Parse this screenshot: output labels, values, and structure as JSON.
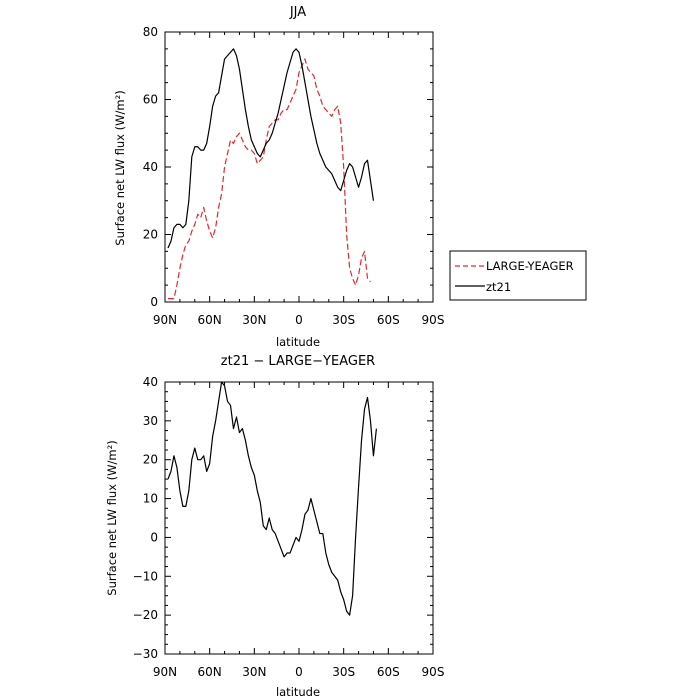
{
  "chart_data": [
    {
      "type": "line",
      "title": "JJA",
      "xlabel": "latitude",
      "ylabel": "Surface net LW flux (W/m²)",
      "xlim": [
        90,
        -90
      ],
      "ylim": [
        0,
        80
      ],
      "yticks": [
        0,
        20,
        40,
        60,
        80
      ],
      "xticks": [
        90,
        60,
        30,
        0,
        -30,
        -60,
        -90
      ],
      "xtick_labels": [
        "90N",
        "60N",
        "30N",
        "0",
        "30S",
        "60S",
        "90S"
      ],
      "grid": false,
      "legend": "outside-right",
      "series": [
        {
          "name": "LARGE-YEAGER",
          "color": "#e8262b",
          "dash": "dashed",
          "points": [
            [
              88,
              1
            ],
            [
              86,
              1
            ],
            [
              84,
              1
            ],
            [
              82,
              5
            ],
            [
              80,
              10
            ],
            [
              78,
              14
            ],
            [
              76,
              17
            ],
            [
              74,
              18
            ],
            [
              72,
              21
            ],
            [
              70,
              23
            ],
            [
              68,
              26
            ],
            [
              66,
              25
            ],
            [
              64,
              28
            ],
            [
              62,
              24
            ],
            [
              60,
              21
            ],
            [
              58,
              19
            ],
            [
              56,
              22
            ],
            [
              54,
              28
            ],
            [
              52,
              32
            ],
            [
              50,
              40
            ],
            [
              48,
              44
            ],
            [
              46,
              48
            ],
            [
              44,
              47
            ],
            [
              42,
              49
            ],
            [
              40,
              50
            ],
            [
              38,
              48
            ],
            [
              36,
              46
            ],
            [
              34,
              45
            ],
            [
              32,
              45
            ],
            [
              30,
              44
            ],
            [
              28,
              41
            ],
            [
              26,
              42
            ],
            [
              24,
              43
            ],
            [
              22,
              48
            ],
            [
              20,
              52
            ],
            [
              18,
              53
            ],
            [
              16,
              54
            ],
            [
              14,
              54
            ],
            [
              12,
              56
            ],
            [
              10,
              57
            ],
            [
              8,
              57
            ],
            [
              6,
              59
            ],
            [
              4,
              61
            ],
            [
              2,
              63
            ],
            [
              0,
              68
            ],
            [
              -2,
              70
            ],
            [
              -4,
              72
            ],
            [
              -6,
              69
            ],
            [
              -8,
              68
            ],
            [
              -10,
              67
            ],
            [
              -12,
              63
            ],
            [
              -14,
              61
            ],
            [
              -16,
              58
            ],
            [
              -18,
              57
            ],
            [
              -20,
              56
            ],
            [
              -22,
              55
            ],
            [
              -24,
              57
            ],
            [
              -26,
              58
            ],
            [
              -28,
              53
            ],
            [
              -30,
              40
            ],
            [
              -32,
              20
            ],
            [
              -34,
              10
            ],
            [
              -36,
              7
            ],
            [
              -38,
              5
            ],
            [
              -40,
              8
            ],
            [
              -42,
              13
            ],
            [
              -44,
              15
            ],
            [
              -46,
              7
            ],
            [
              -48,
              6
            ]
          ]
        },
        {
          "name": "zt21",
          "color": "#000000",
          "dash": "solid",
          "points": [
            [
              88,
              16
            ],
            [
              86,
              18
            ],
            [
              84,
              22
            ],
            [
              82,
              23
            ],
            [
              80,
              23
            ],
            [
              78,
              22
            ],
            [
              76,
              23
            ],
            [
              74,
              30
            ],
            [
              72,
              43
            ],
            [
              70,
              46
            ],
            [
              68,
              46
            ],
            [
              66,
              45
            ],
            [
              64,
              45
            ],
            [
              62,
              47
            ],
            [
              60,
              52
            ],
            [
              58,
              58
            ],
            [
              56,
              61
            ],
            [
              54,
              62
            ],
            [
              52,
              67
            ],
            [
              50,
              72
            ],
            [
              48,
              73
            ],
            [
              46,
              74
            ],
            [
              44,
              75
            ],
            [
              42,
              73
            ],
            [
              40,
              69
            ],
            [
              38,
              63
            ],
            [
              36,
              57
            ],
            [
              34,
              52
            ],
            [
              32,
              48
            ],
            [
              30,
              46
            ],
            [
              28,
              44
            ],
            [
              26,
              43
            ],
            [
              24,
              45
            ],
            [
              22,
              47
            ],
            [
              20,
              48
            ],
            [
              18,
              50
            ],
            [
              16,
              53
            ],
            [
              14,
              56
            ],
            [
              12,
              60
            ],
            [
              10,
              64
            ],
            [
              8,
              68
            ],
            [
              6,
              71
            ],
            [
              4,
              74
            ],
            [
              2,
              75
            ],
            [
              0,
              74
            ],
            [
              -2,
              70
            ],
            [
              -4,
              65
            ],
            [
              -6,
              60
            ],
            [
              -8,
              55
            ],
            [
              -10,
              51
            ],
            [
              -12,
              47
            ],
            [
              -14,
              44
            ],
            [
              -16,
              42
            ],
            [
              -18,
              40
            ],
            [
              -20,
              39
            ],
            [
              -22,
              38
            ],
            [
              -24,
              36
            ],
            [
              -26,
              34
            ],
            [
              -28,
              33
            ],
            [
              -30,
              36
            ],
            [
              -32,
              39
            ],
            [
              -34,
              41
            ],
            [
              -36,
              40
            ],
            [
              -38,
              37
            ],
            [
              -40,
              34
            ],
            [
              -42,
              37
            ],
            [
              -44,
              41
            ],
            [
              -46,
              42
            ],
            [
              -48,
              36
            ],
            [
              -50,
              30
            ]
          ]
        }
      ]
    },
    {
      "type": "line",
      "title": "zt21 − LARGE−YEAGER",
      "xlabel": "latitude",
      "ylabel": "Surface net LW flux (W/m²)",
      "xlim": [
        90,
        -90
      ],
      "ylim": [
        -30,
        40
      ],
      "yticks": [
        -30,
        -20,
        -10,
        0,
        10,
        20,
        30,
        40
      ],
      "xticks": [
        90,
        60,
        30,
        0,
        -30,
        -60,
        -90
      ],
      "xtick_labels": [
        "90N",
        "60N",
        "30N",
        "0",
        "30S",
        "60S",
        "90S"
      ],
      "grid": false,
      "series": [
        {
          "color": "#000000",
          "dash": "solid",
          "points": [
            [
              88,
              15
            ],
            [
              86,
              17
            ],
            [
              84,
              21
            ],
            [
              82,
              18
            ],
            [
              80,
              12
            ],
            [
              78,
              8
            ],
            [
              76,
              8
            ],
            [
              74,
              12
            ],
            [
              72,
              20
            ],
            [
              70,
              23
            ],
            [
              68,
              20
            ],
            [
              66,
              20
            ],
            [
              64,
              21
            ],
            [
              62,
              17
            ],
            [
              60,
              19
            ],
            [
              58,
              26
            ],
            [
              56,
              30
            ],
            [
              54,
              35
            ],
            [
              52,
              40
            ],
            [
              50,
              39
            ],
            [
              48,
              35
            ],
            [
              46,
              34
            ],
            [
              44,
              28
            ],
            [
              42,
              31
            ],
            [
              40,
              27
            ],
            [
              38,
              28
            ],
            [
              36,
              25
            ],
            [
              34,
              21
            ],
            [
              32,
              18
            ],
            [
              30,
              16
            ],
            [
              28,
              12
            ],
            [
              26,
              9
            ],
            [
              24,
              3
            ],
            [
              22,
              2
            ],
            [
              20,
              5
            ],
            [
              18,
              2
            ],
            [
              16,
              1
            ],
            [
              14,
              -1
            ],
            [
              12,
              -3
            ],
            [
              10,
              -5
            ],
            [
              8,
              -4
            ],
            [
              6,
              -4
            ],
            [
              4,
              -2
            ],
            [
              2,
              0
            ],
            [
              0,
              -1
            ],
            [
              -2,
              2
            ],
            [
              -4,
              6
            ],
            [
              -6,
              7
            ],
            [
              -8,
              10
            ],
            [
              -10,
              7
            ],
            [
              -12,
              4
            ],
            [
              -14,
              1
            ],
            [
              -16,
              1
            ],
            [
              -18,
              -4
            ],
            [
              -20,
              -7
            ],
            [
              -22,
              -9
            ],
            [
              -24,
              -10
            ],
            [
              -26,
              -11
            ],
            [
              -28,
              -14
            ],
            [
              -30,
              -16
            ],
            [
              -32,
              -19
            ],
            [
              -34,
              -20
            ],
            [
              -36,
              -15
            ],
            [
              -38,
              0
            ],
            [
              -40,
              13
            ],
            [
              -42,
              25
            ],
            [
              -44,
              33
            ],
            [
              -46,
              36
            ],
            [
              -48,
              30
            ],
            [
              -50,
              21
            ],
            [
              -52,
              28
            ]
          ]
        }
      ]
    }
  ]
}
